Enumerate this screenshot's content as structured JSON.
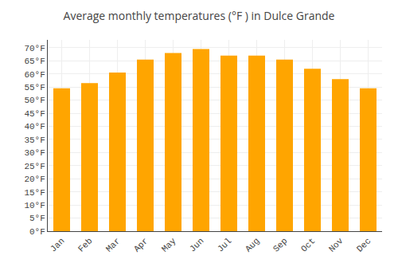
{
  "chart_data": {
    "type": "bar",
    "title": "Average monthly temperatures (°F ) in Dulce Grande",
    "categories": [
      "Jan",
      "Feb",
      "Mar",
      "Apr",
      "May",
      "Jun",
      "Jul",
      "Aug",
      "Sep",
      "Oct",
      "Nov",
      "Dec"
    ],
    "values": [
      54.5,
      56.5,
      60.5,
      65.5,
      68.0,
      69.5,
      67.0,
      67.0,
      65.5,
      62.0,
      58.0,
      54.5
    ],
    "color": "#FFA500",
    "ylim": [
      0,
      73
    ],
    "yticks": [
      {
        "value": 0,
        "label": "0°F"
      },
      {
        "value": 5,
        "label": "5°F"
      },
      {
        "value": 10,
        "label": "10°F"
      },
      {
        "value": 15,
        "label": "15°F"
      },
      {
        "value": 20,
        "label": "20°F"
      },
      {
        "value": 25,
        "label": "25°F"
      },
      {
        "value": 30,
        "label": "30°F"
      },
      {
        "value": 35,
        "label": "35°F"
      },
      {
        "value": 40,
        "label": "40°F"
      },
      {
        "value": 45,
        "label": "45°F"
      },
      {
        "value": 50,
        "label": "50°F"
      },
      {
        "value": 55,
        "label": "55°F"
      },
      {
        "value": 60,
        "label": "60°F"
      },
      {
        "value": 65,
        "label": "65°F"
      },
      {
        "value": 70,
        "label": "70°F"
      }
    ],
    "grid": true
  }
}
